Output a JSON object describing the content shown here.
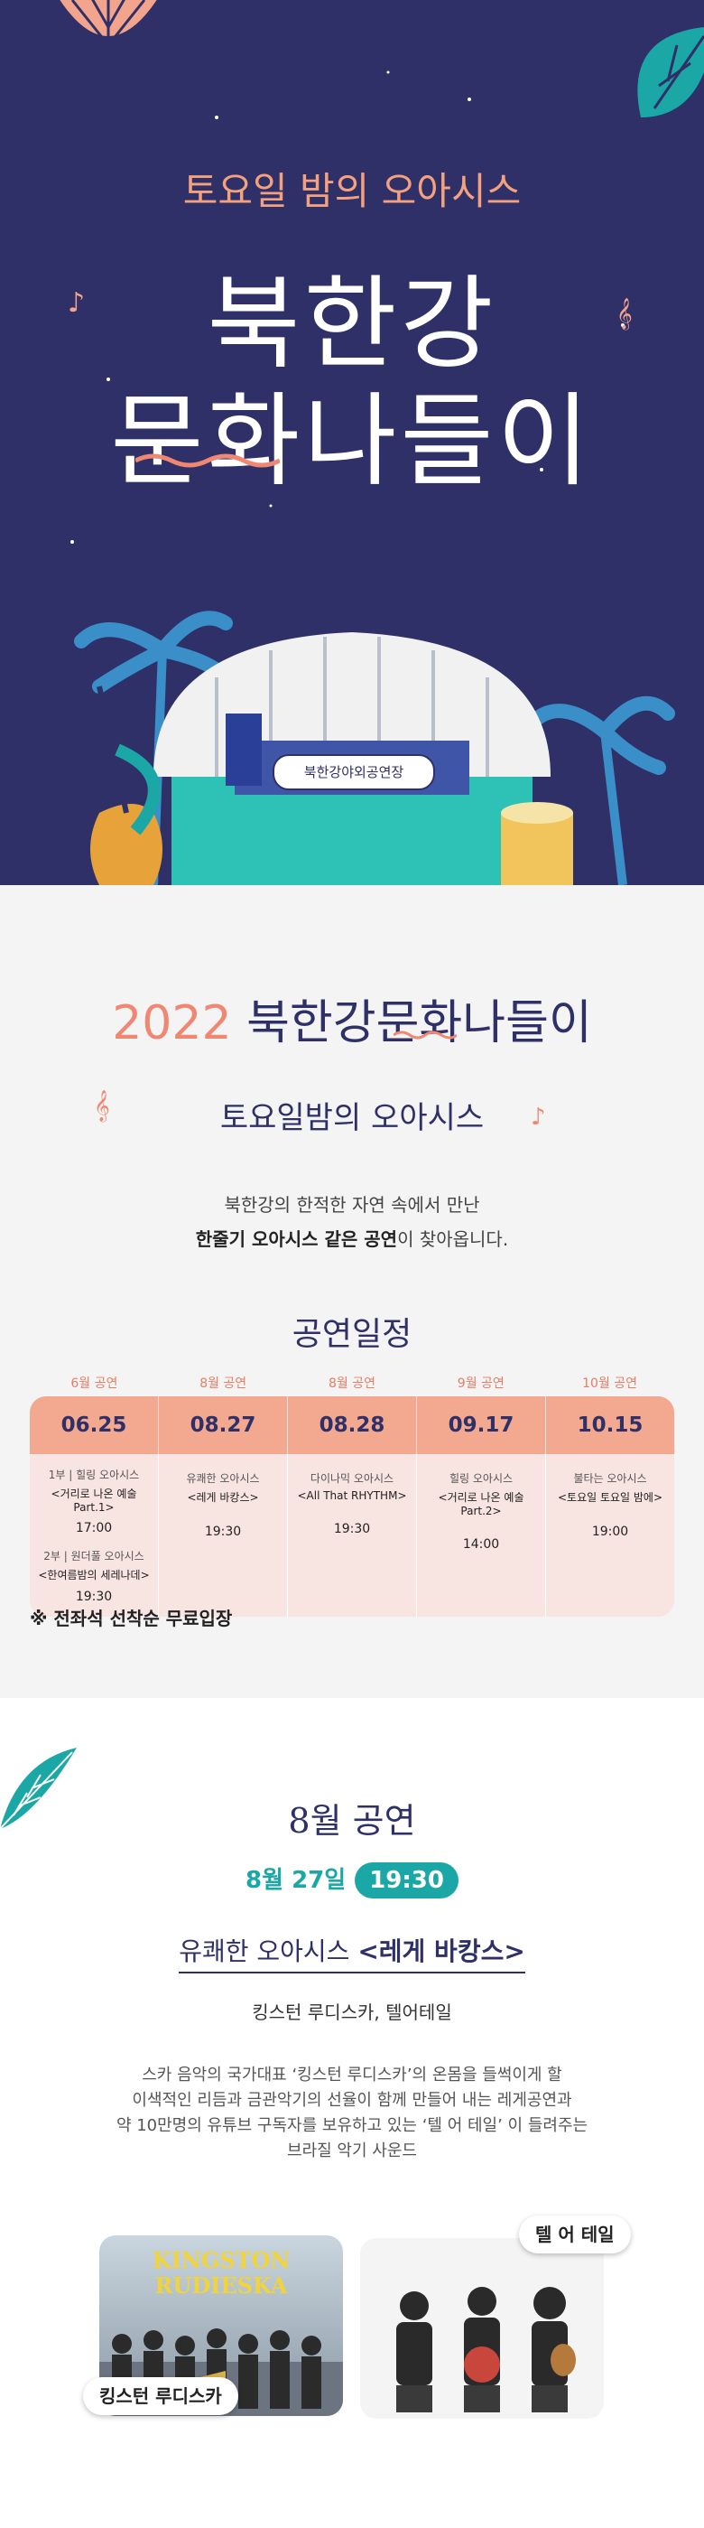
{
  "hero": {
    "subtitle": "토요일 밤의 오아시스",
    "title_line1": "북한강",
    "title_line2": "문화나들이",
    "stage_label": "북한강야외공연장"
  },
  "intro": {
    "year": "2022",
    "title": "북한강문화나들이",
    "subtitle": "토요일밤의 오아시스",
    "desc_line1": "북한강의 한적한 자연 속에서 만난",
    "desc_line2_bold": "한줄기 오아시스 같은 공연",
    "desc_line2_rest": "이 찾아옵니다."
  },
  "schedule": {
    "title": "공연일정",
    "months": [
      "6월 공연",
      "8월 공연",
      "8월 공연",
      "9월 공연",
      "10월 공연"
    ],
    "dates": [
      "06.25",
      "08.27",
      "08.28",
      "09.17",
      "10.15"
    ],
    "col1": {
      "part1_label": "1부 | 힐링 오아시스",
      "part1_title": "<거리로 나온 예술 Part.1>",
      "part1_time": "17:00",
      "part2_label": "2부 | 원더풀 오아시스",
      "part2_title": "<한여름밤의 세레나데>",
      "part2_time": "19:30"
    },
    "col2": {
      "label": "유쾌한 오아시스",
      "title": "<레게 바캉스>",
      "time": "19:30"
    },
    "col3": {
      "label": "다이나믹 오아시스",
      "title": "<All That RHYTHM>",
      "time": "19:30"
    },
    "col4": {
      "label": "힐링 오아시스",
      "title": "<거리로 나온 예술 Part.2>",
      "time": "14:00"
    },
    "col5": {
      "label": "불타는 오아시스",
      "title": "<토요일 토요일 밤에>",
      "time": "19:00"
    },
    "note": "※ 전좌석 선착순 무료입장"
  },
  "august": {
    "title": "8월 공연",
    "date": "8월 27일",
    "time": "19:30",
    "show_prefix": "유쾌한 오아시스",
    "show_title": "<레게 바캉스>",
    "artists": "킹스턴 루디스카, 텔어테일",
    "desc_line1": "스카 음악의 국가대표 ‘킹스턴 루디스카’의 온몸을 들썩이게 할",
    "desc_line2": "이색적인 리듬과 금관악기의 선율이 함께 만들어 내는 레게공연과",
    "desc_line3": "약 10만명의 유튜브 구독자를 보유하고 있는 ‘텔 어 테일’ 이 들려주는",
    "desc_line4": "브라질 악기 사운드",
    "photo1_logo_line1": "KINGSTON",
    "photo1_logo_line2": "RUDIESKA",
    "tag1": "킹스턴 루디스카",
    "tag2": "텔 어 테일"
  },
  "colors": {
    "navy": "#2f3068",
    "coral": "#f08772",
    "teal": "#1aa7a6",
    "peach": "#f3a890"
  }
}
